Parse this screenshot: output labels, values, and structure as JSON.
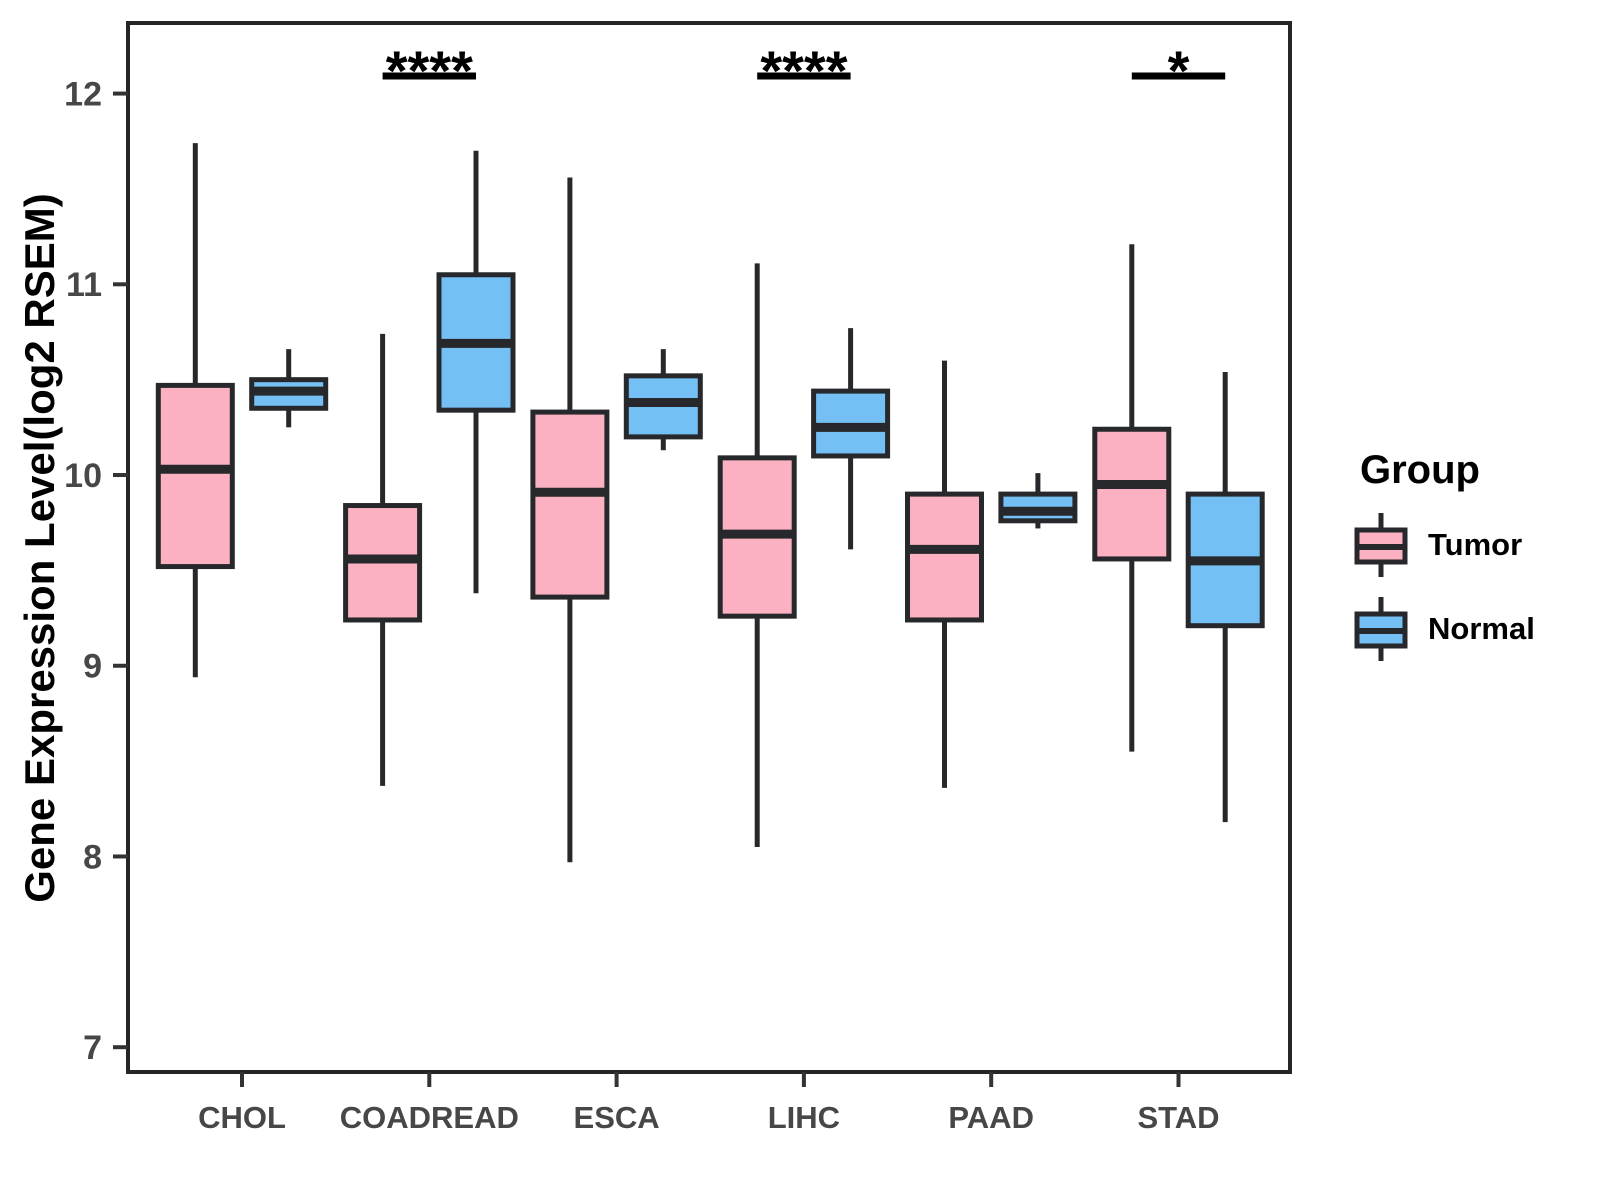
{
  "chart_data": {
    "type": "boxplot",
    "title": "",
    "xlabel": "",
    "ylabel": "Gene Expression Level(log2 RSEM)",
    "ylim": [
      6.87,
      12.37
    ],
    "yticks": [
      7,
      8,
      9,
      10,
      11,
      12
    ],
    "grid": "off",
    "categories": [
      "CHOL",
      "COADREAD",
      "ESCA",
      "LIHC",
      "PAAD",
      "STAD"
    ],
    "legend": {
      "title": "Group",
      "position": "right"
    },
    "series": [
      {
        "name": "Tumor",
        "color": "#FBB1C2",
        "stats": [
          {
            "low": 8.94,
            "q1": 9.52,
            "median": 10.03,
            "q3": 10.47,
            "high": 11.74
          },
          {
            "low": 8.37,
            "q1": 9.24,
            "median": 9.56,
            "q3": 9.84,
            "high": 10.74
          },
          {
            "low": 7.97,
            "q1": 9.36,
            "median": 9.91,
            "q3": 10.33,
            "high": 11.56
          },
          {
            "low": 8.05,
            "q1": 9.26,
            "median": 9.69,
            "q3": 10.09,
            "high": 11.11
          },
          {
            "low": 8.36,
            "q1": 9.24,
            "median": 9.61,
            "q3": 9.9,
            "high": 10.6
          },
          {
            "low": 8.55,
            "q1": 9.56,
            "median": 9.95,
            "q3": 10.24,
            "high": 11.21
          }
        ]
      },
      {
        "name": "Normal",
        "color": "#74BFF4",
        "stats": [
          {
            "low": 10.25,
            "q1": 10.35,
            "median": 10.44,
            "q3": 10.5,
            "high": 10.66
          },
          {
            "low": 9.38,
            "q1": 10.34,
            "median": 10.69,
            "q3": 11.05,
            "high": 11.7
          },
          {
            "low": 10.13,
            "q1": 10.2,
            "median": 10.38,
            "q3": 10.52,
            "high": 10.66
          },
          {
            "low": 9.61,
            "q1": 10.1,
            "median": 10.25,
            "q3": 10.44,
            "high": 10.77
          },
          {
            "low": 9.72,
            "q1": 9.76,
            "median": 9.81,
            "q3": 9.9,
            "high": 10.01
          },
          {
            "low": 8.18,
            "q1": 9.21,
            "median": 9.55,
            "q3": 9.9,
            "high": 10.54
          }
        ]
      }
    ],
    "significance": [
      {
        "category": "COADREAD",
        "label": "****"
      },
      {
        "category": "LIHC",
        "label": "****"
      },
      {
        "category": "STAD",
        "label": "*"
      }
    ],
    "colors": {
      "tumor_fill": "#FBB1C2",
      "normal_fill": "#74BFF4",
      "box_border": "#26282B",
      "panel_border": "#262626",
      "tick_color": "#333333",
      "tick_label_color": "#474747",
      "text_color": "#000000",
      "background": "#FFFFFF"
    }
  }
}
